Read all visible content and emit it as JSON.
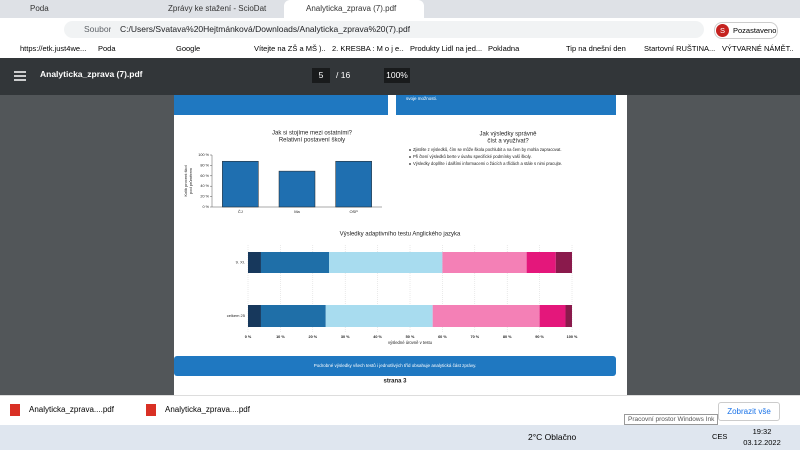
{
  "tabs": [
    {
      "title": "Poda"
    },
    {
      "title": "Zprávy ke stažení - ScioDat"
    },
    {
      "title": "Analyticka_zprava (7).pdf"
    }
  ],
  "address_bar": {
    "scheme": "Soubor",
    "url": "C:/Users/Svatava%20Hejtmánková/Downloads/Analyticka_zprava%20(7).pdf"
  },
  "profile": {
    "initial": "S",
    "status": "Pozastaveno"
  },
  "bookmarks": [
    "https://etk.just4we...",
    "Poda",
    "Google",
    "Vítejte na ZŠ a MŠ )...",
    "2. KRESBA : M o j e...",
    "Produkty Lidl na jed...",
    "Pokladna",
    "Tip na dnešní den",
    "Startovní RUŠTINA...",
    "VÝTVARNÉ NÁMĚT..."
  ],
  "pdf_toolbar": {
    "filename": "Analyticka_zprava (7).pdf",
    "page": "5",
    "page_count": "/ 16",
    "zoom": "100%"
  },
  "pdf_page": {
    "top_text": "svoje možnosti.",
    "chart_school": {
      "type": "bar",
      "title": "Jak si stojíme mezi ostatními?",
      "subtitle": "Relativní postavení školy",
      "ylabel": [
        "Kolik procent škol",
        "pod průměrem"
      ],
      "categories": [
        "ČJ",
        "Ma",
        "OSP"
      ],
      "values": [
        88,
        69,
        88
      ],
      "color": "#1f6fb0",
      "ylim": [
        0,
        100
      ],
      "yticks": [
        {
          "value": 0,
          "label": "0 %"
        },
        {
          "value": 20,
          "label": "20 %"
        },
        {
          "value": 40,
          "label": "40 %"
        },
        {
          "value": 60,
          "label": "60 %"
        },
        {
          "value": 80,
          "label": "80 %"
        },
        {
          "value": 100,
          "label": "100 %"
        }
      ]
    },
    "guide": {
      "title": [
        "Jak výsledky správně",
        "číst a využívat?"
      ],
      "bullets": [
        "Zjistěte z výsledků, čím se může škola pochlubit a na čem by mohla zapracovat.",
        "Při čtení výsledků berte v úvahu specifické podmínky vaší školy.",
        "Výsledky doplňte i dalšími informacemi o žácích a třídách a stále s nimi pracujte."
      ]
    },
    "chart_results": {
      "type": "stacked_barh",
      "title": "Výsledky adaptivního testu Anglického jazyka",
      "categories": [
        "9. XI.",
        "celkem 25"
      ],
      "series": [
        {
          "color": "#17385c",
          "values": [
            4,
            4
          ]
        },
        {
          "color": "#1f6fa8",
          "values": [
            21,
            20
          ]
        },
        {
          "color": "#a8dcef",
          "values": [
            35,
            33
          ]
        },
        {
          "color": "#f480b6",
          "values": [
            26,
            33
          ]
        },
        {
          "color": "#e4177b",
          "values": [
            9,
            8
          ]
        },
        {
          "color": "#8a1a4c",
          "values": [
            5,
            2
          ]
        }
      ],
      "xlim": [
        0,
        100
      ],
      "xticks": [
        {
          "value": 0,
          "label": "0 %"
        },
        {
          "value": 10,
          "label": "10 %"
        },
        {
          "value": 20,
          "label": "20 %"
        },
        {
          "value": 30,
          "label": "30 %"
        },
        {
          "value": 40,
          "label": "40 %"
        },
        {
          "value": 50,
          "label": "50 %"
        },
        {
          "value": 60,
          "label": "60 %"
        },
        {
          "value": 70,
          "label": "70 %"
        },
        {
          "value": 80,
          "label": "80 %"
        },
        {
          "value": 90,
          "label": "90 %"
        },
        {
          "value": 100,
          "label": "100 %"
        }
      ],
      "xlabel": "výsledné úrovně v testu"
    },
    "footer_note": "Podrobné výsledky všech testů i jednotlivých tříd obsahuje analytická část zprávy.",
    "page_label": "strana 3"
  },
  "downloads": {
    "items": [
      "Analyticka_zprava....pdf",
      "Analyticka_zprava....pdf"
    ],
    "show_all": "Zobrazit vše"
  },
  "tooltip": "Pracovní prostor Windows Ink",
  "taskbar": {
    "weather": "2°C  Oblačno",
    "language": "CES",
    "time": "19:32",
    "date": "03.12.2022"
  }
}
